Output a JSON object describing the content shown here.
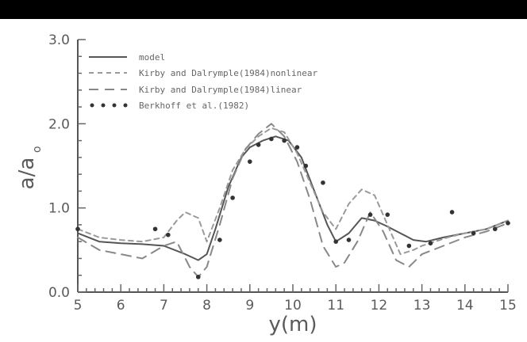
{
  "chart_data": {
    "type": "line",
    "title": "",
    "xlabel": "y(m)",
    "ylabel_main": "a/a",
    "ylabel_sub": "o",
    "xlim": [
      5,
      15
    ],
    "ylim": [
      0,
      3
    ],
    "xticks": [
      "5",
      "6",
      "7",
      "8",
      "9",
      "10",
      "11",
      "12",
      "13",
      "14",
      "15"
    ],
    "yticks": [
      "0.0",
      "1.0",
      "2.0",
      "3.0"
    ],
    "legend_position": "top-left",
    "grid": false,
    "series": [
      {
        "name": "model",
        "style": "solid",
        "color": "#555555",
        "x": [
          5.0,
          5.5,
          6.0,
          6.5,
          7.0,
          7.5,
          7.8,
          8.0,
          8.2,
          8.5,
          8.8,
          9.0,
          9.3,
          9.6,
          9.9,
          10.2,
          10.5,
          10.8,
          11.0,
          11.3,
          11.6,
          11.9,
          12.2,
          12.5,
          12.8,
          13.1,
          13.5,
          14.0,
          14.5,
          15.0
        ],
        "y": [
          0.7,
          0.6,
          0.58,
          0.57,
          0.55,
          0.45,
          0.38,
          0.45,
          0.75,
          1.25,
          1.6,
          1.72,
          1.8,
          1.85,
          1.8,
          1.6,
          1.2,
          0.8,
          0.6,
          0.7,
          0.88,
          0.85,
          0.78,
          0.7,
          0.62,
          0.6,
          0.65,
          0.7,
          0.75,
          0.85
        ]
      },
      {
        "name": "Kirby and Dalrymple(1984)nonlinear",
        "style": "dashed",
        "color": "#9a9a9a",
        "x": [
          5.0,
          5.5,
          6.0,
          6.5,
          7.0,
          7.3,
          7.5,
          7.8,
          8.0,
          8.3,
          8.6,
          8.9,
          9.2,
          9.5,
          9.8,
          10.1,
          10.4,
          10.7,
          11.0,
          11.3,
          11.6,
          11.9,
          12.2,
          12.5,
          12.8,
          13.0,
          13.3,
          13.6,
          14.0,
          14.5,
          15.0
        ],
        "y": [
          0.75,
          0.65,
          0.62,
          0.6,
          0.65,
          0.85,
          0.95,
          0.88,
          0.6,
          1.0,
          1.45,
          1.7,
          1.85,
          1.95,
          1.9,
          1.65,
          1.3,
          0.95,
          0.75,
          1.05,
          1.22,
          1.15,
          0.8,
          0.45,
          0.5,
          0.55,
          0.6,
          0.65,
          0.7,
          0.75,
          0.85
        ]
      },
      {
        "name": "Kirby and Dalrymple(1984)linear",
        "style": "long-dash",
        "color": "#888888",
        "x": [
          5.0,
          5.5,
          6.0,
          6.5,
          7.0,
          7.3,
          7.6,
          7.8,
          8.0,
          8.3,
          8.6,
          8.9,
          9.2,
          9.5,
          9.8,
          10.1,
          10.4,
          10.7,
          11.0,
          11.2,
          11.5,
          11.8,
          12.1,
          12.4,
          12.7,
          13.0,
          13.5,
          14.0,
          14.5,
          15.0
        ],
        "y": [
          0.65,
          0.5,
          0.45,
          0.4,
          0.55,
          0.6,
          0.3,
          0.18,
          0.3,
          0.8,
          1.35,
          1.7,
          1.88,
          2.0,
          1.85,
          1.55,
          1.1,
          0.55,
          0.3,
          0.35,
          0.6,
          0.95,
          0.72,
          0.38,
          0.3,
          0.45,
          0.55,
          0.65,
          0.72,
          0.82
        ]
      },
      {
        "name": "Berkhoff et al.(1982)",
        "style": "points",
        "color": "#333333",
        "x": [
          5.0,
          6.8,
          7.1,
          7.8,
          8.3,
          8.6,
          9.0,
          9.2,
          9.5,
          9.8,
          10.1,
          10.3,
          10.7,
          11.0,
          11.3,
          11.8,
          12.2,
          12.7,
          13.2,
          13.7,
          14.2,
          14.7,
          15.0
        ],
        "y": [
          0.75,
          0.75,
          0.68,
          0.18,
          0.62,
          1.12,
          1.55,
          1.75,
          1.82,
          1.8,
          1.72,
          1.5,
          1.3,
          0.6,
          0.62,
          0.92,
          0.92,
          0.55,
          0.58,
          0.95,
          0.7,
          0.75,
          0.82
        ]
      }
    ]
  }
}
